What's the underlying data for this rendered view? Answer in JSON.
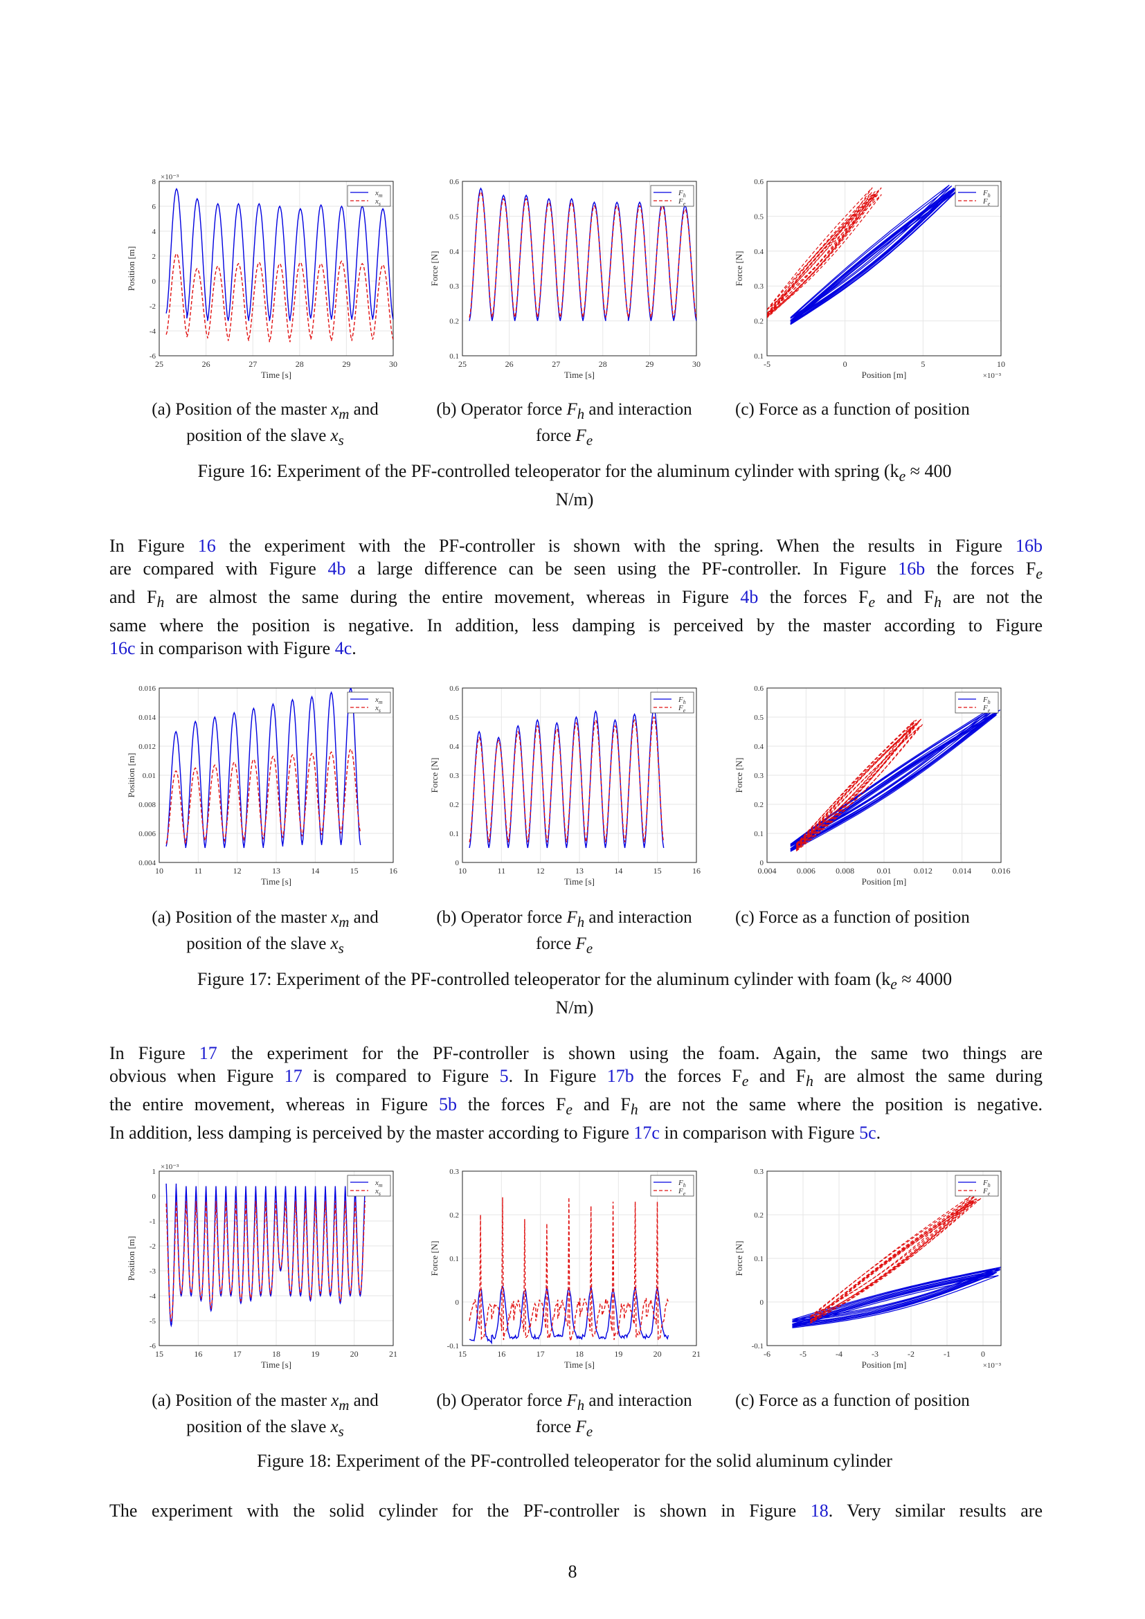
{
  "figures": [
    {
      "id": "fig16",
      "caption": "Figure 16: Experiment of the PF-controlled teleoperator for the aluminum cylinder with spring (k",
      "caption_sub": "e",
      "caption_tail": " ≈ 400",
      "caption_line2": "N/m)",
      "subcaptions": {
        "a_line1": "(a) Position of the master ",
        "a_sym1": "x",
        "a_sub1": "m",
        "a_mid": " and",
        "a_line2": "position of the slave ",
        "a_sym2": "x",
        "a_sub2": "s",
        "b_line1": "(b) Operator force ",
        "b_sym1": "F",
        "b_sub1": "h",
        "b_mid": " and interaction",
        "b_line2": "force ",
        "b_sym2": "F",
        "b_sub2": "e",
        "c_line1": "(c) Force as a function of position"
      }
    },
    {
      "id": "fig17",
      "caption": "Figure 17: Experiment of the PF-controlled teleoperator for the aluminum cylinder with foam (k",
      "caption_sub": "e",
      "caption_tail": " ≈ 4000",
      "caption_line2": "N/m)"
    },
    {
      "id": "fig18",
      "caption": "Figure 18: Experiment of the PF-controlled teleoperator for the solid aluminum cylinder"
    }
  ],
  "paragraphs": {
    "p1": [
      [
        "In Figure ",
        "16",
        " the experiment with the PF-controller is shown with the spring. When the results in Figure ",
        "16b"
      ],
      [
        "are compared with Figure ",
        "4b",
        " a large difference can be seen using the PF-controller. In Figure ",
        "16b",
        " the forces F",
        "e"
      ],
      [
        "and F",
        "h",
        " are almost the same during the entire movement, whereas in Figure ",
        "4b",
        " the forces F",
        "e",
        " and F",
        "h",
        " are not the"
      ],
      [
        "same where the position is negative. In addition, less damping is perceived by the master according to Figure"
      ],
      [
        "",
        "16c",
        " in comparison with Figure ",
        "4c",
        "."
      ]
    ],
    "p2": [
      [
        "In Figure ",
        "17",
        " the experiment for the PF-controller is shown using the foam. Again, the same two things are"
      ],
      [
        "obvious when Figure ",
        "17",
        " is compared to Figure ",
        "5",
        ". In Figure ",
        "17b",
        " the forces F",
        "e",
        " and F",
        "h",
        " are almost the same during"
      ],
      [
        "the entire movement, whereas in Figure ",
        "5b",
        " the forces F",
        "e",
        " and F",
        "h",
        " are not the same where the position is negative."
      ],
      [
        "In addition, less damping is perceived by the master according to Figure ",
        "17c",
        " in comparison with Figure ",
        "5c",
        "."
      ]
    ],
    "p3": [
      [
        "The experiment with the solid cylinder for the PF-controller is shown in Figure ",
        "18",
        ". Very similar results are"
      ]
    ]
  },
  "page_number": "8",
  "colors": {
    "master": "#0000e0",
    "slave": "#e01010",
    "link": "#1a1ad0"
  },
  "chart_data": [
    {
      "id": "fig16a",
      "type": "line",
      "ylabel": "Position [m]",
      "xlabel": "Time [s]",
      "xlim": [
        25,
        30
      ],
      "ylim": [
        -6,
        8
      ],
      "exponent": "×10⁻³",
      "xticks": [
        "25",
        "26",
        "27",
        "28",
        "29",
        "30"
      ],
      "yticks": [
        "-6",
        "-4",
        "-2",
        "0",
        "2",
        "4",
        "6",
        "8"
      ],
      "legend": [
        "x_m",
        "x_s"
      ],
      "legend_position": "top-right",
      "grid": true,
      "series": [
        {
          "name": "x_m",
          "peaks": [
            7.4,
            6.6,
            6.2,
            6.2,
            6.2,
            6.0,
            5.8,
            6.1,
            6.0,
            6.0,
            5.8
          ],
          "troughs": [
            -2.6,
            -3.0,
            -3.2,
            -3.2,
            -3.0,
            -3.2,
            -3.0,
            -3.0,
            -3.1,
            -3.0,
            -3.1
          ]
        },
        {
          "name": "x_s",
          "peaks": [
            2.2,
            1.0,
            1.2,
            1.4,
            1.5,
            1.4,
            1.5,
            1.4,
            1.6,
            1.4,
            1.3
          ],
          "troughs": [
            -4.3,
            -4.5,
            -4.6,
            -4.8,
            -4.6,
            -4.9,
            -4.5,
            -4.7,
            -4.8,
            -4.6,
            -4.7
          ]
        }
      ]
    },
    {
      "id": "fig16b",
      "type": "line",
      "ylabel": "Force [N]",
      "xlabel": "Time [s]",
      "xlim": [
        25,
        30
      ],
      "ylim": [
        0.1,
        0.6
      ],
      "xticks": [
        "25",
        "26",
        "27",
        "28",
        "29",
        "30"
      ],
      "yticks": [
        "0.1",
        "0.2",
        "0.3",
        "0.4",
        "0.5",
        "0.6"
      ],
      "legend": [
        "F_h",
        "F_e"
      ],
      "legend_position": "top-right",
      "grid": true,
      "series": [
        {
          "name": "F_h",
          "peaks": [
            0.58,
            0.56,
            0.56,
            0.55,
            0.55,
            0.54,
            0.54,
            0.54,
            0.54,
            0.53
          ],
          "troughs": [
            0.2,
            0.2,
            0.2,
            0.2,
            0.2,
            0.2,
            0.21,
            0.2,
            0.2,
            0.2
          ]
        },
        {
          "name": "F_e",
          "peaks": [
            0.57,
            0.55,
            0.55,
            0.54,
            0.54,
            0.53,
            0.53,
            0.53,
            0.53,
            0.52
          ],
          "troughs": [
            0.21,
            0.21,
            0.21,
            0.21,
            0.21,
            0.21,
            0.21,
            0.21,
            0.21,
            0.21
          ]
        }
      ]
    },
    {
      "id": "fig16c",
      "type": "scatter",
      "ylabel": "Force [N]",
      "xlabel": "Position [m]",
      "xlim": [
        -5,
        10
      ],
      "ylim": [
        0.1,
        0.6
      ],
      "exponent": "×10⁻³",
      "xticks": [
        "-5",
        "0",
        "5",
        "10"
      ],
      "yticks": [
        "0.1",
        "0.2",
        "0.3",
        "0.4",
        "0.5",
        "0.6"
      ],
      "legend": [
        "F_h",
        "F_e"
      ],
      "legend_position": "top-right",
      "grid": true,
      "series": [
        {
          "name": "F_h",
          "from": [
            -3.5,
            0.2
          ],
          "to": [
            7.0,
            0.58
          ]
        },
        {
          "name": "F_e",
          "from": [
            -5.0,
            0.22
          ],
          "to": [
            2.0,
            0.57
          ]
        }
      ]
    },
    {
      "id": "fig17a",
      "type": "line",
      "ylabel": "Position [m]",
      "xlabel": "Time [s]",
      "xlim": [
        10,
        16
      ],
      "ylim": [
        0.004,
        0.016
      ],
      "xticks": [
        "10",
        "11",
        "12",
        "13",
        "14",
        "15",
        "16"
      ],
      "yticks": [
        "0.004",
        "0.006",
        "0.008",
        "0.01",
        "0.012",
        "0.014",
        "0.016"
      ],
      "legend": [
        "x_m",
        "x_s"
      ],
      "legend_position": "top-right",
      "grid": true,
      "series": [
        {
          "name": "x_m",
          "peaks": [
            0.013,
            0.0137,
            0.014,
            0.0143,
            0.0146,
            0.0149,
            0.0152,
            0.0154,
            0.0157,
            0.016
          ],
          "troughs": [
            0.0051,
            0.005,
            0.005,
            0.005,
            0.005,
            0.0051,
            0.0052,
            0.0052,
            0.0052,
            0.0052
          ]
        },
        {
          "name": "x_s",
          "peaks": [
            0.0103,
            0.0105,
            0.0107,
            0.0109,
            0.0111,
            0.0113,
            0.0114,
            0.0115,
            0.0116,
            0.0118
          ],
          "troughs": [
            0.0053,
            0.0055,
            0.0055,
            0.0055,
            0.0056,
            0.0057,
            0.0058,
            0.0059,
            0.006,
            0.0061
          ]
        }
      ]
    },
    {
      "id": "fig17b",
      "type": "line",
      "ylabel": "Force [N]",
      "xlabel": "Time [s]",
      "xlim": [
        10,
        16
      ],
      "ylim": [
        0,
        0.6
      ],
      "xticks": [
        "10",
        "11",
        "12",
        "13",
        "14",
        "15",
        "16"
      ],
      "yticks": [
        "0",
        "0.1",
        "0.2",
        "0.3",
        "0.4",
        "0.5",
        "0.6"
      ],
      "legend": [
        "F_h",
        "F_e"
      ],
      "legend_position": "top-right",
      "grid": true,
      "series": [
        {
          "name": "F_h",
          "peaks": [
            0.45,
            0.43,
            0.47,
            0.49,
            0.48,
            0.5,
            0.52,
            0.49,
            0.51,
            0.53
          ],
          "troughs": [
            0.05,
            0.05,
            0.05,
            0.05,
            0.05,
            0.05,
            0.05,
            0.05,
            0.05,
            0.05
          ]
        },
        {
          "name": "F_e",
          "peaks": [
            0.43,
            0.42,
            0.45,
            0.47,
            0.46,
            0.48,
            0.49,
            0.47,
            0.49,
            0.5
          ],
          "troughs": [
            0.07,
            0.07,
            0.07,
            0.07,
            0.07,
            0.07,
            0.07,
            0.07,
            0.07,
            0.07
          ]
        }
      ]
    },
    {
      "id": "fig17c",
      "type": "scatter",
      "ylabel": "Force [N]",
      "xlabel": "Position [m]",
      "xlim": [
        0.004,
        0.016
      ],
      "ylim": [
        0,
        0.6
      ],
      "xticks": [
        "0.004",
        "0.006",
        "0.008",
        "0.01",
        "0.012",
        "0.014",
        "0.016"
      ],
      "yticks": [
        "0",
        "0.1",
        "0.2",
        "0.3",
        "0.4",
        "0.5",
        "0.6"
      ],
      "legend": [
        "F_h",
        "F_e"
      ],
      "legend_position": "top-right",
      "grid": true,
      "series": [
        {
          "name": "F_h",
          "from": [
            0.0052,
            0.05
          ],
          "to": [
            0.0158,
            0.52
          ]
        },
        {
          "name": "F_e",
          "from": [
            0.0055,
            0.05
          ],
          "to": [
            0.0117,
            0.48
          ]
        }
      ]
    },
    {
      "id": "fig18a",
      "type": "line",
      "ylabel": "Position [m]",
      "xlabel": "Time [s]",
      "xlim": [
        15,
        21
      ],
      "ylim": [
        -6,
        1
      ],
      "exponent": "×10⁻³",
      "xticks": [
        "15",
        "16",
        "17",
        "18",
        "19",
        "20",
        "21"
      ],
      "yticks": [
        "-6",
        "-5",
        "-4",
        "-3",
        "-2",
        "-1",
        "0",
        "1"
      ],
      "legend": [
        "x_m",
        "x_s"
      ],
      "legend_position": "top-right",
      "grid": true,
      "series": [
        {
          "name": "x_m",
          "peaks": [
            0.5,
            0.4,
            0.4,
            0.4,
            0.4,
            0.4,
            0.4,
            0.4,
            0.4,
            0.4,
            0.4,
            0.4,
            0.4,
            0.4,
            0.4,
            0.4,
            0.4,
            0.4,
            0.4,
            0.4
          ],
          "troughs": [
            -5.2,
            -4.0,
            -4.0,
            -4.2,
            -4.6,
            -4.0,
            -4.0,
            -4.3,
            -4.2,
            -4.0,
            -4.0,
            -3.0,
            -4.0,
            -4.0,
            -4.2,
            -4.0,
            -4.0,
            -4.3,
            -4.0,
            -4.0
          ]
        },
        {
          "name": "x_s",
          "peaks": [
            -0.3,
            -0.2,
            -0.2,
            -0.2,
            -0.2,
            -0.2,
            -0.2,
            -0.2,
            -0.2,
            -0.2,
            -0.2,
            -0.2,
            -0.2,
            -0.2,
            -0.2,
            -0.2,
            -0.2,
            -0.2,
            -0.2,
            -0.2
          ],
          "troughs": [
            -5.0,
            -3.9,
            -3.9,
            -4.1,
            -4.5,
            -3.9,
            -3.9,
            -4.2,
            -4.1,
            -3.9,
            -3.9,
            -2.9,
            -3.9,
            -3.9,
            -4.1,
            -3.9,
            -3.9,
            -4.2,
            -3.9,
            -3.9
          ]
        }
      ]
    },
    {
      "id": "fig18b",
      "type": "line",
      "ylabel": "Force [N]",
      "xlabel": "Time [s]",
      "xlim": [
        15,
        21
      ],
      "ylim": [
        -0.1,
        0.3
      ],
      "xticks": [
        "15",
        "16",
        "17",
        "18",
        "19",
        "20",
        "21"
      ],
      "yticks": [
        "-0.1",
        "0",
        "0.1",
        "0.2",
        "0.3"
      ],
      "legend": [
        "F_h",
        "F_e"
      ],
      "legend_position": "top-right",
      "grid": true,
      "series": [
        {
          "name": "F_h",
          "peaks": [
            0.03,
            0.04,
            0.03,
            0.03,
            0.03,
            0.03,
            0.03,
            0.03,
            0.03
          ],
          "troughs": [
            -0.09,
            -0.08,
            -0.08,
            -0.08,
            -0.08,
            -0.08,
            -0.08,
            -0.08,
            -0.08
          ]
        },
        {
          "name": "F_e",
          "peaks": [
            0.2,
            0.24,
            0.19,
            0.18,
            0.24,
            0.22,
            0.23,
            0.23,
            0.23
          ],
          "troughs": [
            -0.05,
            -0.05,
            -0.05,
            -0.05,
            -0.05,
            -0.05,
            -0.05,
            -0.05,
            -0.05
          ]
        }
      ]
    },
    {
      "id": "fig18c",
      "type": "scatter",
      "ylabel": "Force [N]",
      "xlabel": "Position [m]",
      "xlim": [
        -6,
        0.5
      ],
      "ylim": [
        -0.1,
        0.3
      ],
      "exponent": "×10⁻³",
      "xticks": [
        "-6",
        "-5",
        "-4",
        "-3",
        "-2",
        "-1",
        "0"
      ],
      "yticks": [
        "-0.1",
        "0",
        "0.1",
        "0.2",
        "0.3"
      ],
      "legend": [
        "F_h",
        "F_e"
      ],
      "legend_position": "top-right",
      "grid": true,
      "series": [
        {
          "name": "F_h",
          "from": [
            -5.3,
            -0.05
          ],
          "to": [
            0.4,
            0.07
          ]
        },
        {
          "name": "F_e",
          "from": [
            -4.8,
            -0.04
          ],
          "to": [
            -0.2,
            0.24
          ]
        }
      ]
    }
  ]
}
